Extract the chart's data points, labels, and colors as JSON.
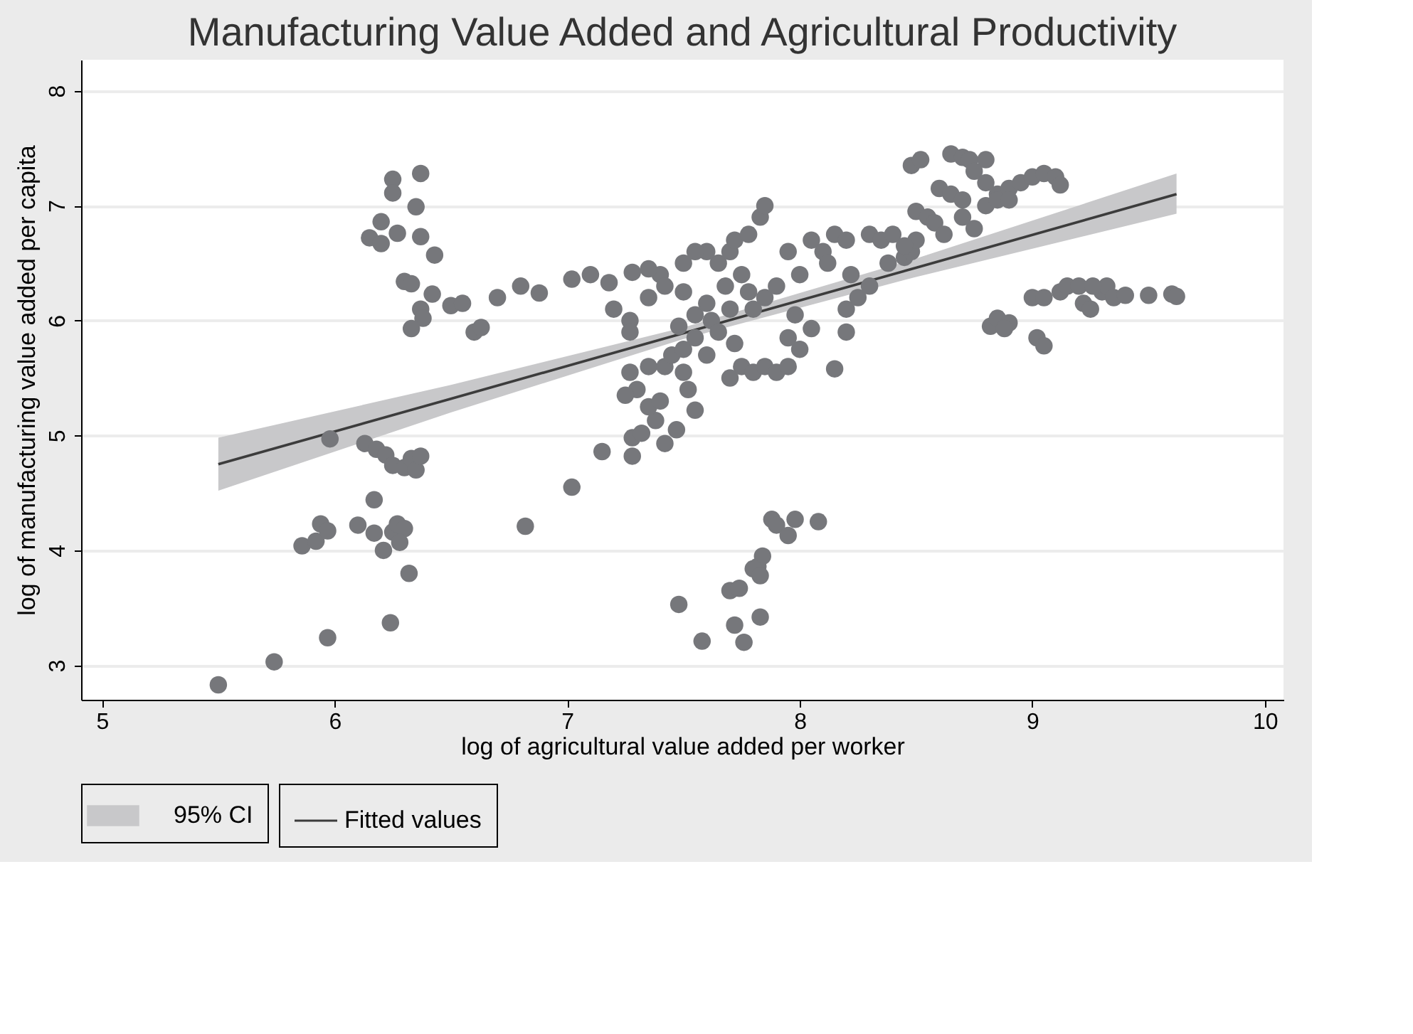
{
  "chart_data": {
    "type": "scatter",
    "title": "Manufacturing Value Added and Agricultural Productivity",
    "xlabel": "log of agricultural value added per worker",
    "ylabel": "log of manufacturing value added per capita",
    "annotations": [
      "95% CI"
    ],
    "xlim": [
      4.91,
      10.08
    ],
    "ylim": [
      2.7,
      8.27
    ],
    "xticks": [
      5,
      6,
      7,
      8,
      9,
      10
    ],
    "yticks": [
      3,
      4,
      5,
      6,
      7,
      8
    ],
    "grid": "y",
    "legend": "bottom",
    "series": [
      {
        "type": "line",
        "name": "Fitted values",
        "color": "#3c3c3c",
        "line_style": "solid",
        "marker": "none",
        "x": [
          5.5,
          6.5,
          7.5,
          8.5,
          9.62
        ],
        "values": [
          4.75,
          5.32,
          5.89,
          6.46,
          7.1
        ],
        "lower": [
          4.52,
          5.2,
          5.84,
          6.38,
          6.93
        ],
        "upper": [
          4.98,
          5.44,
          5.94,
          6.54,
          7.28
        ]
      },
      {
        "color": "#76777b",
        "marker": "circle",
        "x": [
          6.37,
          6.25,
          6.25,
          6.35,
          6.2,
          6.27,
          6.15,
          6.2,
          6.37,
          6.43,
          6.3,
          6.33,
          6.37,
          6.38,
          6.33,
          6.42,
          6.5,
          6.55,
          6.6,
          6.63,
          6.7,
          6.8,
          6.88,
          7.02,
          7.1,
          5.5,
          5.74,
          5.97,
          6.24,
          6.32,
          5.86,
          5.92,
          5.94,
          5.97,
          6.1,
          6.17,
          6.21,
          6.17,
          6.25,
          6.27,
          6.3,
          6.28,
          6.82,
          5.98,
          6.13,
          6.18,
          6.22,
          6.25,
          6.3,
          6.33,
          6.35,
          6.37,
          7.02,
          7.48,
          7.58,
          7.72,
          7.76,
          7.7,
          7.74,
          7.82,
          7.84,
          7.8,
          7.83,
          7.83,
          7.88,
          7.9,
          7.98,
          8.08,
          7.95,
          7.15,
          7.28,
          7.28,
          7.32,
          7.38,
          7.42,
          7.47,
          7.35,
          7.4,
          7.3,
          7.25,
          7.27,
          7.35,
          7.42,
          7.5,
          7.52,
          7.55,
          7.45,
          7.5,
          7.55,
          7.6,
          7.48,
          7.55,
          7.62,
          7.65,
          7.7,
          7.72,
          7.75,
          7.7,
          7.8,
          7.85,
          7.9,
          7.95,
          8.0,
          7.95,
          7.78,
          7.68,
          7.8,
          7.85,
          7.9,
          7.75,
          7.65,
          7.7,
          7.72,
          7.78,
          7.83,
          7.85,
          7.6,
          7.55,
          7.5,
          7.4,
          7.35,
          7.28,
          7.18,
          7.2,
          7.27,
          7.27,
          7.35,
          7.42,
          7.5,
          7.6,
          8.05,
          7.98,
          8.0,
          7.95,
          8.05,
          8.1,
          8.15,
          8.2,
          8.3,
          8.35,
          8.4,
          8.12,
          8.22,
          8.2,
          8.25,
          8.3,
          8.38,
          8.45,
          8.48,
          8.2,
          8.15,
          8.48,
          8.52,
          8.65,
          8.7,
          8.73,
          8.8,
          8.75,
          8.8,
          8.85,
          8.9,
          8.95,
          9.0,
          9.05,
          9.1,
          9.12,
          8.6,
          8.65,
          8.7,
          8.8,
          8.85,
          8.5,
          8.55,
          8.58,
          8.62,
          8.75,
          8.5,
          8.45,
          8.7,
          8.9,
          8.82,
          8.85,
          8.9,
          8.88,
          9.02,
          9.05,
          9.0,
          9.05,
          9.12,
          9.15,
          9.2,
          9.22,
          9.25,
          9.3,
          9.32,
          9.35,
          9.4,
          9.5,
          9.6,
          9.62,
          9.26
        ],
        "values": [
          7.28,
          7.23,
          7.11,
          6.99,
          6.86,
          6.76,
          6.72,
          6.67,
          6.73,
          6.57,
          6.34,
          6.32,
          6.1,
          6.02,
          5.93,
          6.23,
          6.13,
          6.15,
          5.9,
          5.94,
          6.2,
          6.3,
          6.24,
          6.36,
          6.4,
          2.83,
          3.03,
          3.24,
          3.37,
          3.8,
          4.04,
          4.08,
          4.23,
          4.17,
          4.22,
          4.15,
          4.0,
          4.44,
          4.16,
          4.23,
          4.19,
          4.07,
          4.21,
          4.97,
          4.93,
          4.88,
          4.83,
          4.74,
          4.72,
          4.8,
          4.7,
          4.82,
          4.55,
          3.53,
          3.21,
          3.35,
          3.2,
          3.65,
          3.67,
          3.86,
          3.95,
          3.84,
          3.78,
          3.42,
          4.27,
          4.22,
          4.27,
          4.25,
          4.13,
          4.86,
          4.98,
          4.82,
          5.02,
          5.13,
          4.93,
          5.05,
          5.25,
          5.3,
          5.4,
          5.35,
          5.55,
          5.6,
          5.6,
          5.55,
          5.4,
          5.22,
          5.7,
          5.75,
          5.85,
          5.7,
          5.95,
          6.05,
          6.0,
          5.9,
          6.1,
          5.8,
          5.6,
          5.5,
          5.55,
          5.6,
          5.55,
          5.6,
          5.75,
          5.85,
          6.25,
          6.3,
          6.1,
          6.2,
          6.3,
          6.4,
          6.5,
          6.6,
          6.7,
          6.75,
          6.9,
          7.0,
          6.6,
          6.6,
          6.5,
          6.4,
          6.45,
          6.42,
          6.33,
          6.1,
          6.0,
          5.9,
          6.2,
          6.3,
          6.25,
          6.15,
          5.93,
          6.05,
          6.4,
          6.6,
          6.7,
          6.6,
          6.75,
          6.7,
          6.75,
          6.7,
          6.75,
          6.5,
          6.4,
          6.1,
          6.2,
          6.3,
          6.5,
          6.55,
          6.6,
          5.9,
          5.58,
          7.35,
          7.4,
          7.45,
          7.42,
          7.4,
          7.4,
          7.3,
          7.2,
          7.1,
          7.15,
          7.2,
          7.25,
          7.28,
          7.25,
          7.18,
          7.15,
          7.1,
          7.05,
          7.0,
          7.05,
          6.95,
          6.9,
          6.85,
          6.75,
          6.8,
          6.7,
          6.65,
          6.9,
          7.05,
          5.95,
          6.02,
          5.98,
          5.93,
          5.85,
          5.78,
          6.2,
          6.2,
          6.25,
          6.3,
          6.3,
          6.15,
          6.1,
          6.25,
          6.3,
          6.2,
          6.22,
          6.22,
          6.23,
          6.21,
          6.3
        ]
      }
    ]
  }
}
